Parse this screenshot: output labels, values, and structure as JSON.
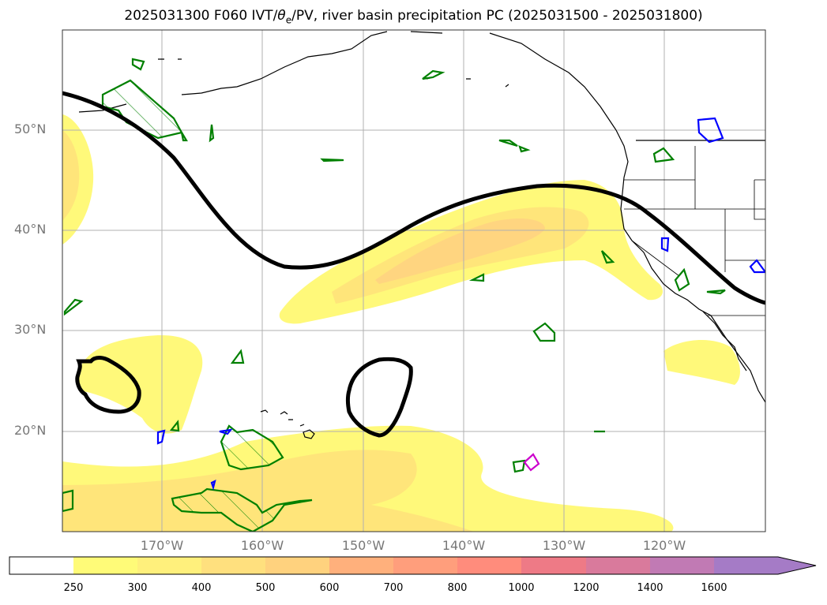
{
  "title": {
    "prefix": "2025031300 F060 IVT/",
    "theta": "θ",
    "theta_sub": "e",
    "suffix": "/PV, river basin precipitation PC (2025031500 - 2025031800)"
  },
  "lat_labels": [
    "50°N",
    "40°N",
    "30°N",
    "20°N"
  ],
  "lon_labels": [
    "170°W",
    "160°W",
    "150°W",
    "140°W",
    "130°W",
    "120°W"
  ],
  "colorbar": {
    "labels": [
      "250",
      "300",
      "400",
      "500",
      "600",
      "700",
      "800",
      "1000",
      "1200",
      "1400",
      "1600"
    ],
    "colors": [
      "#ffffff",
      "#fffb78",
      "#fff07c",
      "#ffe07e",
      "#ffd27e",
      "#ffb07c",
      "#ff9e7c",
      "#ff8c7c",
      "#ee7a86",
      "#d97a9c",
      "#c17ab4",
      "#a57bc6"
    ],
    "extend": "max"
  },
  "colors": {
    "ivt_light": "#fff97a",
    "ivt_mid": "#ffe57a",
    "ivt_dark": "#ffd580",
    "pv_contour": "#000000",
    "pc_green": "#008000",
    "pc_blue": "#0000ff",
    "pc_magenta": "#cc00cc",
    "grid": "#b0b0b0"
  }
}
